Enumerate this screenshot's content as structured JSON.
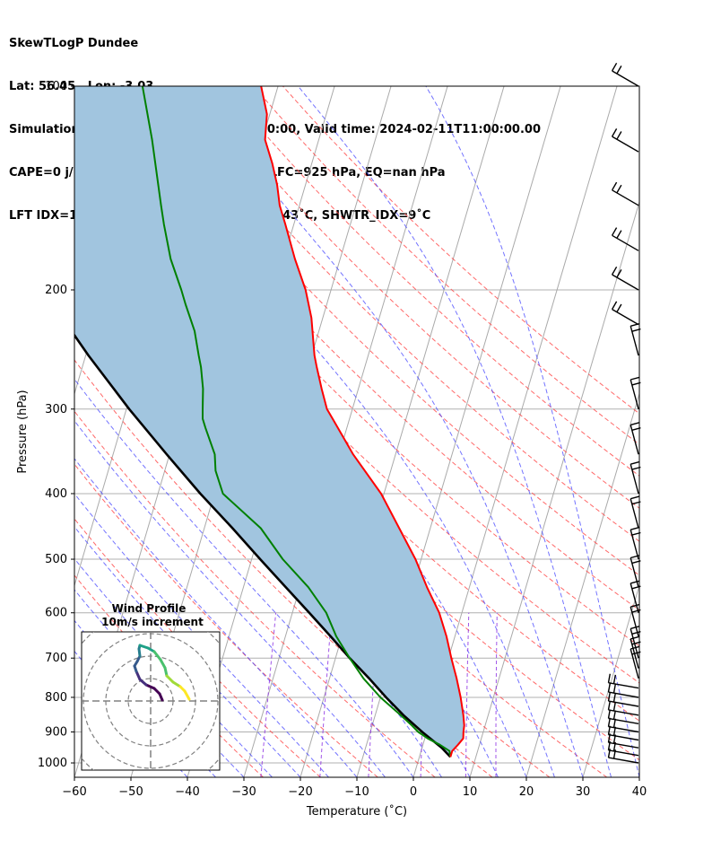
{
  "header": {
    "line1": "SkewTLogP Dundee",
    "line2": "Lat: 56.45   Lon: -3.03",
    "line3": "Simulation start time: 2024-02-10_00:00:00, Valid time: 2024-02-11T11:00:00.00",
    "line4": "CAPE=0 j/kg, CIN=0 j/kg, LCL=968 hPa, LFC=925 hPa, EQ=nan hPa",
    "line5": "LFT IDX=10˚C, K IDX=12˚C, TOTAL TOTS=43˚C, SHWTR_IDX=9˚C"
  },
  "chart_data": [
    {
      "type": "line",
      "subtype": "skew-t log-p",
      "xlabel": "Temperature (˚C)",
      "ylabel": "Pressure (hPa)",
      "xlim": [
        -60,
        40
      ],
      "ylim": [
        1050,
        100
      ],
      "yscale": "log",
      "grid": true,
      "xticks": [
        "−60",
        "−50",
        "−40",
        "−30",
        "−20",
        "−10",
        "0",
        "10",
        "20",
        "30",
        "40"
      ],
      "yticks": [
        "100",
        "200",
        "300",
        "400",
        "500",
        "600",
        "700",
        "800",
        "900",
        "1000"
      ],
      "colors": {
        "temperature": "#ff0000",
        "dewpoint": "#008000",
        "parcel": "#000000",
        "cape_fill": "#a1c5df",
        "isotherms": "#aaaaaa",
        "dry_adiabats": "#ff4444",
        "moist_adiabats": "#4444ff",
        "mixing_ratio": "#8a2be2"
      },
      "series": [
        {
          "key": "temperature",
          "pressure": [
            980,
            960,
            940,
            920,
            900,
            880,
            850,
            800,
            750,
            700,
            650,
            600,
            550,
            500,
            450,
            400,
            350,
            310,
            300,
            280,
            260,
            250,
            220,
            200,
            180,
            160,
            150,
            140,
            130,
            120,
            110,
            100
          ],
          "values": [
            5.5,
            5.5,
            6.2,
            6.8,
            6.5,
            6.3,
            5.6,
            4.2,
            2.5,
            0.5,
            -1.5,
            -4.0,
            -7.5,
            -11.0,
            -15.5,
            -20.5,
            -27.5,
            -33.0,
            -34.5,
            -36.5,
            -38.5,
            -39.5,
            -42.0,
            -44.5,
            -48.0,
            -51.5,
            -53.5,
            -55.0,
            -57.0,
            -59.5,
            -60.5,
            -63.0
          ]
        },
        {
          "key": "dewpoint",
          "pressure": [
            980,
            960,
            940,
            920,
            900,
            880,
            850,
            800,
            750,
            700,
            650,
            600,
            550,
            500,
            450,
            400,
            370,
            350,
            320,
            310,
            300,
            280,
            260,
            250,
            230,
            210,
            200,
            180,
            160,
            150,
            120,
            100
          ],
          "values": [
            5.5,
            5.0,
            3.0,
            0.5,
            -1.5,
            -3.0,
            -5.5,
            -10.0,
            -14.0,
            -17.5,
            -21.0,
            -24.0,
            -28.5,
            -34.5,
            -40.0,
            -48.5,
            -51.0,
            -52.0,
            -55.0,
            -56.0,
            -56.5,
            -57.5,
            -59.0,
            -60.0,
            -62.0,
            -65.0,
            -66.5,
            -70.0,
            -73.0,
            -74.5,
            -79.5,
            -84.0
          ]
        },
        {
          "key": "parcel",
          "pressure": [
            980,
            950,
            900,
            850,
            800,
            750,
            700,
            650,
            600,
            550,
            500,
            450,
            400,
            350,
            300,
            250,
            200,
            150,
            100
          ],
          "values": [
            5.5,
            3.5,
            -0.8,
            -5.0,
            -9.0,
            -13.0,
            -17.5,
            -22.0,
            -27.0,
            -32.5,
            -38.5,
            -45.0,
            -52.5,
            -60.5,
            -69.5,
            -79.5,
            -91.0,
            -104.0,
            -120.0
          ]
        }
      ],
      "annotations": [
        "CAPE shaded region between parcel and temperature profiles"
      ],
      "wind_barbs": "shown along right edge from 1000 to 100 hPa",
      "inset": {
        "title": "Wind Profile",
        "subtitle": "10m/s increment",
        "type": "hodograph"
      }
    }
  ]
}
